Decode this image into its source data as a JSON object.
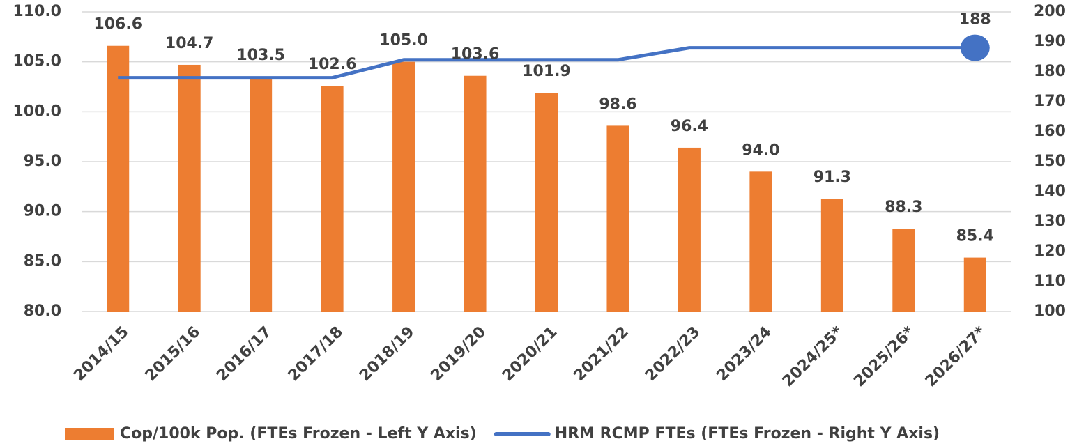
{
  "chart_data": {
    "type": "bar",
    "categories": [
      "2014/15",
      "2015/16",
      "2016/17",
      "2017/18",
      "2018/19",
      "2019/20",
      "2020/21",
      "2021/22",
      "2022/23",
      "2023/24",
      "2024/25*",
      "2025/26*",
      "2026/27*"
    ],
    "series": [
      {
        "name": "Cop/100k Pop. (FTEs Frozen - Left Y Axis)",
        "type": "bar",
        "color": "#ED7D31",
        "values": [
          106.6,
          104.7,
          103.5,
          102.6,
          105.0,
          103.6,
          101.9,
          98.6,
          96.4,
          94.0,
          91.3,
          88.3,
          85.4
        ],
        "value_labels": [
          "106.6",
          "104.7",
          "103.5",
          "102.6",
          "105.0",
          "103.6",
          "101.9",
          "98.6",
          "96.4",
          "94.0",
          "91.3",
          "88.3",
          "85.4"
        ]
      },
      {
        "name": "HRM RCMP FTEs (FTEs Frozen - Right Y Axis)",
        "type": "line",
        "axis": "y2",
        "color": "#4472C4",
        "values": [
          178,
          178,
          178,
          178,
          184,
          184,
          184,
          184,
          188,
          188,
          188,
          188,
          188
        ],
        "value_labels": [
          null,
          null,
          null,
          null,
          null,
          null,
          null,
          null,
          null,
          null,
          null,
          null,
          "188"
        ]
      }
    ],
    "ylim": [
      80,
      110
    ],
    "yticks": [
      {
        "value": 80,
        "label": "80.0"
      },
      {
        "value": 85,
        "label": "85.0"
      },
      {
        "value": 90,
        "label": "90.0"
      },
      {
        "value": 95,
        "label": "95.0"
      },
      {
        "value": 100,
        "label": "100.0"
      },
      {
        "value": 105,
        "label": "105.0"
      },
      {
        "value": 110,
        "label": "110.0"
      }
    ],
    "y2lim": [
      100,
      200
    ],
    "y2ticks": [
      100,
      110,
      120,
      130,
      140,
      150,
      160,
      170,
      180,
      190,
      200
    ],
    "grid": true,
    "legend": "bottom"
  }
}
